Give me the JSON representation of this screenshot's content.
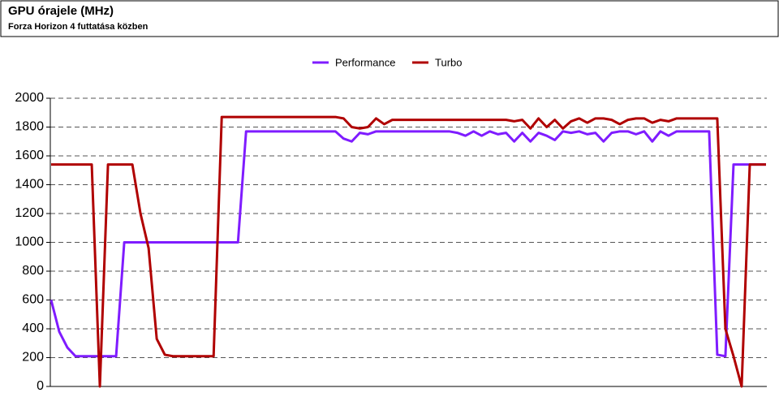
{
  "chart_data": {
    "type": "line",
    "title": "GPU órajele (MHz)",
    "subtitle": "Forza Horizon 4 futtatása közben",
    "categories": [
      null,
      null,
      null,
      null,
      null,
      null,
      null,
      null,
      null,
      null,
      null,
      null,
      null,
      null,
      null,
      null,
      null,
      null,
      null,
      null,
      null,
      null,
      null,
      null,
      null,
      null,
      null,
      null,
      null,
      null,
      null,
      null,
      null,
      null,
      null,
      null,
      null,
      null,
      null,
      null,
      null,
      null,
      null,
      null,
      null,
      null,
      null,
      null,
      null,
      null,
      null,
      null,
      null,
      null,
      null,
      null,
      null,
      null,
      null,
      null,
      null,
      null,
      null,
      null,
      null,
      null,
      null,
      null,
      null,
      null,
      null,
      null,
      null,
      null,
      null,
      null,
      null,
      null,
      null,
      null,
      null,
      null,
      null,
      null,
      null,
      null,
      null,
      null,
      null
    ],
    "series": [
      {
        "name": "Performance",
        "color": "#7f1cff",
        "values": [
          600,
          380,
          270,
          210,
          210,
          210,
          210,
          210,
          210,
          1000,
          1000,
          1000,
          1000,
          1000,
          1000,
          1000,
          1000,
          1000,
          1000,
          1000,
          1000,
          1000,
          1000,
          1000,
          1770,
          1770,
          1770,
          1770,
          1770,
          1770,
          1770,
          1770,
          1770,
          1770,
          1770,
          1770,
          1720,
          1700,
          1760,
          1750,
          1770,
          1770,
          1770,
          1770,
          1770,
          1770,
          1770,
          1770,
          1770,
          1770,
          1760,
          1740,
          1770,
          1740,
          1770,
          1750,
          1760,
          1700,
          1760,
          1700,
          1760,
          1740,
          1710,
          1770,
          1760,
          1770,
          1750,
          1760,
          1700,
          1760,
          1770,
          1770,
          1750,
          1770,
          1700,
          1770,
          1740,
          1770,
          1770,
          1770,
          1770,
          1770,
          220,
          210,
          1540,
          1540,
          1540,
          1540,
          1540
        ]
      },
      {
        "name": "Turbo",
        "color": "#b00000",
        "values": [
          1540,
          1540,
          1540,
          1540,
          1540,
          1540,
          0,
          1540,
          1540,
          1540,
          1540,
          1200,
          960,
          330,
          220,
          210,
          210,
          210,
          210,
          210,
          210,
          1870,
          1870,
          1870,
          1870,
          1870,
          1870,
          1870,
          1870,
          1870,
          1870,
          1870,
          1870,
          1870,
          1870,
          1870,
          1860,
          1800,
          1790,
          1800,
          1860,
          1820,
          1850,
          1850,
          1850,
          1850,
          1850,
          1850,
          1850,
          1850,
          1850,
          1850,
          1850,
          1850,
          1850,
          1850,
          1850,
          1840,
          1850,
          1790,
          1860,
          1800,
          1850,
          1790,
          1840,
          1860,
          1830,
          1860,
          1860,
          1850,
          1820,
          1850,
          1860,
          1860,
          1830,
          1850,
          1840,
          1860,
          1860,
          1860,
          1860,
          1860,
          1860,
          400,
          210,
          0,
          1540,
          1540,
          1540
        ]
      }
    ],
    "ylim": [
      0,
      2000
    ],
    "yticks": [
      0,
      200,
      400,
      600,
      800,
      1000,
      1200,
      1400,
      1600,
      1800,
      2000
    ],
    "grid": true,
    "legend": "top"
  }
}
